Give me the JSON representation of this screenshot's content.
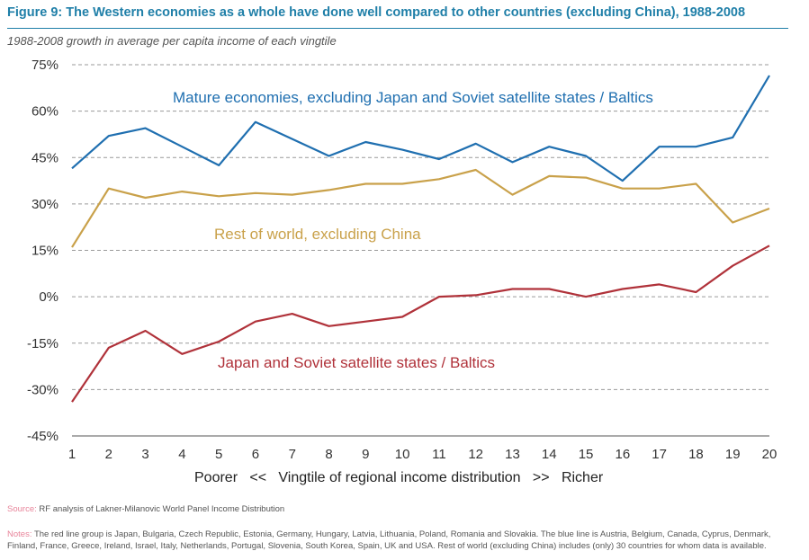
{
  "figure": {
    "title": "Figure 9: The Western economies as a whole have done well compared to other countries (excluding China), 1988-2008",
    "subtitle": "1988-2008 growth in average per capita income of each vingtile"
  },
  "footer": {
    "source_key": "Source:",
    "source_text": "RF analysis of Lakner-Milanovic World Panel Income Distribution",
    "notes_key": "Notes:",
    "notes_text": "The red line group is Japan, Bulgaria, Czech Republic, Estonia, Germany, Hungary, Latvia, Lithuania, Poland, Romania and Slovakia. The blue line is Austria, Belgium, Canada, Cyprus, Denmark, Finland, France, Greece, Ireland, Israel, Italy, Netherlands, Portugal, Slovenia, South Korea, Spain, UK and USA. Rest of world (excluding China) includes (only) 30 countries for whom data is available."
  },
  "chart_data": {
    "type": "line",
    "x": [
      1,
      2,
      3,
      4,
      5,
      6,
      7,
      8,
      9,
      10,
      11,
      12,
      13,
      14,
      15,
      16,
      17,
      18,
      19,
      20
    ],
    "xlabel": "Poorer   <<   Vingtile of regional income distribution   >>   Richer",
    "ylabel": "",
    "ylim": [
      -45,
      75
    ],
    "yticks": [
      75,
      60,
      45,
      30,
      15,
      0,
      -15,
      -30,
      -45
    ],
    "ytick_labels": [
      "75%",
      "60%",
      "45%",
      "30%",
      "15%",
      "0%",
      "-15%",
      "-30%",
      "-45%"
    ],
    "grid": "horizontal dashed",
    "series": [
      {
        "name": "Mature economies, excluding Japan and Soviet satellite states / Baltics",
        "color": "#1f6fb0",
        "values": [
          41.5,
          52,
          54.5,
          48.5,
          42.5,
          56.5,
          51,
          45.5,
          50,
          47.5,
          44.5,
          49.5,
          43.5,
          48.5,
          45.5,
          37.5,
          48.5,
          48.5,
          51.5,
          71.5
        ]
      },
      {
        "name": "Rest of world, excluding China",
        "color": "#c9a14a",
        "values": [
          16,
          35,
          32,
          34,
          32.5,
          33.5,
          33,
          34.5,
          36.5,
          36.5,
          38,
          41,
          33,
          39,
          38.5,
          35,
          35,
          36.5,
          24,
          28.5
        ]
      },
      {
        "name": "Japan and Soviet satellite states / Baltics",
        "color": "#b0323a",
        "values": [
          -34,
          -16.5,
          -11,
          -18.5,
          -14.5,
          -8,
          -5.5,
          -9.5,
          -8,
          -6.5,
          0,
          0.5,
          2.5,
          2.5,
          0,
          2.5,
          4,
          1.5,
          10,
          16.5
        ]
      }
    ]
  }
}
